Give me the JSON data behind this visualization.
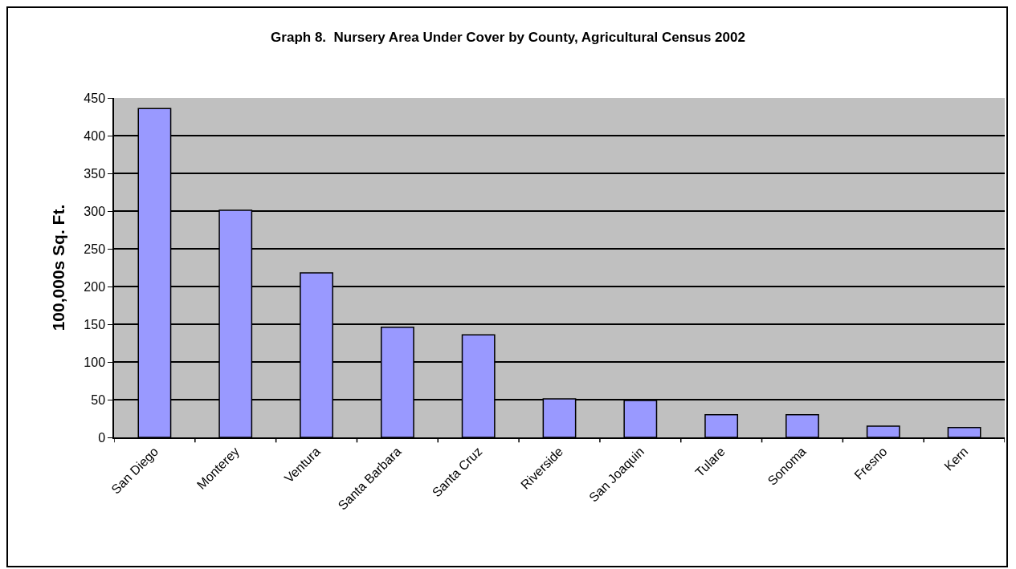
{
  "chart_data": {
    "type": "bar",
    "title": "Graph 8.  Nursery Area Under Cover by County, Agricultural Census 2002",
    "ylabel": "100,000s Sq. Ft.",
    "categories": [
      "San Diego",
      "Monterey",
      "Ventura",
      "Santa Barbara",
      "Santa Cruz",
      "Riverside",
      "San Joaquin",
      "Tulare",
      "Sonoma",
      "Fresno",
      "Kern"
    ],
    "values": [
      436,
      301,
      218,
      146,
      136,
      51,
      49,
      30,
      30,
      15,
      13
    ],
    "color": "#9999ff",
    "ylim": [
      0,
      450
    ],
    "yticks": [
      0,
      50,
      100,
      150,
      200,
      250,
      300,
      350,
      400,
      450
    ],
    "grid": "y"
  }
}
